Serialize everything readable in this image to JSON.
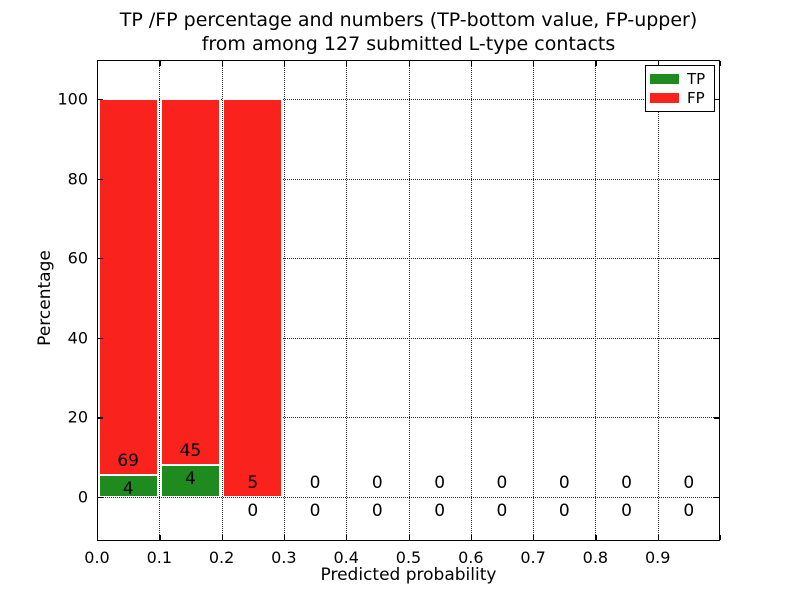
{
  "figure": {
    "title_line1": "TP /FP percentage and numbers (TP-bottom value, FP-upper)",
    "title_line2": "from among 127 submitted L-type contacts"
  },
  "chart_data": {
    "type": "bar",
    "stacked": true,
    "title": "TP /FP percentage and numbers (TP-bottom value, FP-upper) from among 127 submitted L-type contacts",
    "xlabel": "Predicted probability",
    "ylabel": "Percentage",
    "total_submitted": 127,
    "categories": [
      "0.0-0.1",
      "0.1-0.2",
      "0.2-0.3",
      "0.3-0.4",
      "0.4-0.5",
      "0.5-0.6",
      "0.6-0.7",
      "0.7-0.8",
      "0.8-0.9",
      "0.9-1.0"
    ],
    "x_tick_labels": [
      "0.0",
      "0.1",
      "0.2",
      "0.3",
      "0.4",
      "0.5",
      "0.6",
      "0.7",
      "0.8",
      "0.9"
    ],
    "x_ticks": [
      0.0,
      0.1,
      0.2,
      0.3,
      0.4,
      0.5,
      0.6,
      0.7,
      0.8,
      0.9,
      1.0
    ],
    "y_ticks": [
      0,
      20,
      40,
      60,
      80,
      100
    ],
    "y_tick_labels": [
      "0",
      "20",
      "40",
      "60",
      "80",
      "100"
    ],
    "xlim": [
      0.0,
      1.0
    ],
    "ylim_visible": [
      -11,
      110
    ],
    "grid": "dotted",
    "legend_position": "upper right",
    "legend": {
      "entries": [
        {
          "label": "TP",
          "color": "#1f8b1f"
        },
        {
          "label": "FP",
          "color": "#fa221c"
        }
      ]
    },
    "series": [
      {
        "name": "TP",
        "counts": [
          4,
          4,
          0,
          0,
          0,
          0,
          0,
          0,
          0,
          0
        ],
        "pct": [
          5.48,
          8.16,
          0,
          0,
          0,
          0,
          0,
          0,
          0,
          0
        ]
      },
      {
        "name": "FP",
        "counts": [
          69,
          45,
          5,
          0,
          0,
          0,
          0,
          0,
          0,
          0
        ],
        "pct": [
          94.52,
          91.84,
          100,
          0,
          0,
          0,
          0,
          0,
          0,
          0
        ]
      }
    ]
  }
}
